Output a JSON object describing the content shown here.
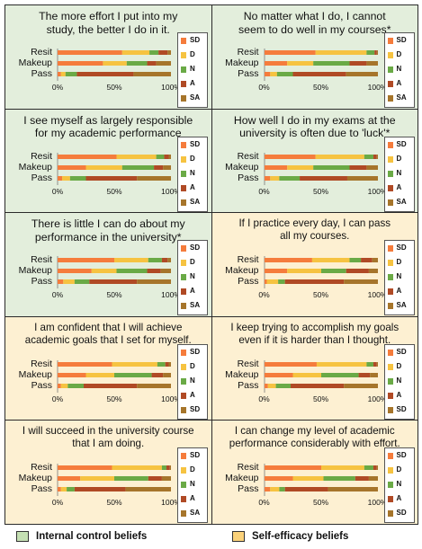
{
  "colors": {
    "SD": "#f57c3c",
    "D": "#f6c341",
    "N": "#6aaa46",
    "A": "#b04a25",
    "SA": "#a6752b",
    "internal_bg": "#e3eedc",
    "selfefficacy_bg": "#fdf0d2",
    "internal_swatch": "#c5e0b3",
    "selfefficacy_swatch": "#fbd27a"
  },
  "footer": {
    "internal_label": "Internal control beliefs",
    "selfefficacy_label": "Self-efficacy beliefs"
  },
  "chart_data": [
    {
      "type": "bar",
      "title": "The more effort I put into my\nstudy, the better I do in it.",
      "group": "internal",
      "categories": [
        "Resit",
        "Makeup",
        "Pass"
      ],
      "x_ticks": [
        "0%",
        "50%",
        "100%"
      ],
      "legend": [
        "SD",
        "D",
        "N",
        "A",
        "SA"
      ],
      "series": [
        {
          "name": "SD",
          "values": [
            0.57,
            0.4,
            0.03
          ]
        },
        {
          "name": "D",
          "values": [
            0.24,
            0.21,
            0.04
          ]
        },
        {
          "name": "N",
          "values": [
            0.08,
            0.18,
            0.1
          ]
        },
        {
          "name": "A",
          "values": [
            0.08,
            0.08,
            0.5
          ]
        },
        {
          "name": "SA",
          "values": [
            0.03,
            0.13,
            0.33
          ]
        }
      ]
    },
    {
      "type": "bar",
      "title": "No matter what I do, I cannot\nseem to do well in my courses*",
      "group": "internal",
      "categories": [
        "Resit",
        "Makeup",
        "Pass"
      ],
      "x_ticks": [
        "0%",
        "50%",
        "100%"
      ],
      "legend": [
        "SD",
        "D",
        "N",
        "A",
        "SA"
      ],
      "series": [
        {
          "name": "SD",
          "values": [
            0.45,
            0.2,
            0.05
          ]
        },
        {
          "name": "D",
          "values": [
            0.45,
            0.23,
            0.06
          ]
        },
        {
          "name": "N",
          "values": [
            0.07,
            0.32,
            0.14
          ]
        },
        {
          "name": "A",
          "values": [
            0.02,
            0.15,
            0.47
          ]
        },
        {
          "name": "SA",
          "values": [
            0.01,
            0.1,
            0.28
          ]
        }
      ]
    },
    {
      "type": "bar",
      "title": "I see myself as largely responsible\nfor my academic performance",
      "group": "internal",
      "categories": [
        "Resit",
        "Makeup",
        "Pass"
      ],
      "x_ticks": [
        "0%",
        "50%",
        "100%"
      ],
      "legend": [
        "SD",
        "D",
        "N",
        "A",
        "SA"
      ],
      "series": [
        {
          "name": "SD",
          "values": [
            0.52,
            0.25,
            0.04
          ]
        },
        {
          "name": "D",
          "values": [
            0.35,
            0.32,
            0.07
          ]
        },
        {
          "name": "N",
          "values": [
            0.07,
            0.28,
            0.14
          ]
        },
        {
          "name": "A",
          "values": [
            0.04,
            0.08,
            0.45
          ]
        },
        {
          "name": "SA",
          "values": [
            0.02,
            0.07,
            0.3
          ]
        }
      ]
    },
    {
      "type": "bar",
      "title": "How well I do in my exams at the\nuniversity is often due to 'luck'*",
      "group": "internal",
      "categories": [
        "Resit",
        "Makeup",
        "Pass"
      ],
      "x_ticks": [
        "0%",
        "50%",
        "100%"
      ],
      "legend": [
        "SD",
        "D",
        "N",
        "A",
        "SA"
      ],
      "series": [
        {
          "name": "SD",
          "values": [
            0.45,
            0.2,
            0.05
          ]
        },
        {
          "name": "D",
          "values": [
            0.43,
            0.23,
            0.08
          ]
        },
        {
          "name": "N",
          "values": [
            0.08,
            0.32,
            0.18
          ]
        },
        {
          "name": "A",
          "values": [
            0.03,
            0.15,
            0.42
          ]
        },
        {
          "name": "SA",
          "values": [
            0.01,
            0.1,
            0.27
          ]
        }
      ]
    },
    {
      "type": "bar",
      "title": "There is little I can do about my\nperformance in the university*",
      "group": "internal",
      "categories": [
        "Resit",
        "Makeup",
        "Pass"
      ],
      "x_ticks": [
        "0%",
        "50%",
        "100%"
      ],
      "legend": [
        "SD",
        "D",
        "N",
        "A",
        "SA"
      ],
      "series": [
        {
          "name": "SD",
          "values": [
            0.5,
            0.3,
            0.05
          ]
        },
        {
          "name": "D",
          "values": [
            0.3,
            0.22,
            0.1
          ]
        },
        {
          "name": "N",
          "values": [
            0.12,
            0.27,
            0.13
          ]
        },
        {
          "name": "A",
          "values": [
            0.05,
            0.12,
            0.42
          ]
        },
        {
          "name": "SA",
          "values": [
            0.03,
            0.09,
            0.3
          ]
        }
      ]
    },
    {
      "type": "bar",
      "title": "If I practice every day, I can pass\nall my courses.",
      "group": "selfefficacy",
      "categories": [
        "Resit",
        "Makeup",
        "Pass"
      ],
      "x_ticks": [
        "0%",
        "50%",
        "100%"
      ],
      "legend": [
        "SD",
        "D",
        "N",
        "A",
        "SA"
      ],
      "series": [
        {
          "name": "SD",
          "values": [
            0.42,
            0.2,
            0.02
          ]
        },
        {
          "name": "D",
          "values": [
            0.33,
            0.3,
            0.1
          ]
        },
        {
          "name": "N",
          "values": [
            0.1,
            0.22,
            0.06
          ]
        },
        {
          "name": "A",
          "values": [
            0.1,
            0.2,
            0.52
          ]
        },
        {
          "name": "SA",
          "values": [
            0.05,
            0.08,
            0.3
          ]
        }
      ]
    },
    {
      "type": "bar",
      "title": "I am confident that I will achieve\nacademic goals that I set for myself.",
      "group": "selfefficacy",
      "categories": [
        "Resit",
        "Makeup",
        "Pass"
      ],
      "x_ticks": [
        "0%",
        "50%",
        "100%"
      ],
      "legend": [
        "SD",
        "D",
        "N",
        "A",
        "SD"
      ],
      "series": [
        {
          "name": "SD",
          "values": [
            0.48,
            0.25,
            0.03
          ]
        },
        {
          "name": "D",
          "values": [
            0.4,
            0.25,
            0.06
          ]
        },
        {
          "name": "N",
          "values": [
            0.07,
            0.33,
            0.14
          ]
        },
        {
          "name": "A",
          "values": [
            0.03,
            0.1,
            0.47
          ]
        },
        {
          "name": "SD",
          "values": [
            0.02,
            0.07,
            0.3
          ]
        }
      ]
    },
    {
      "type": "bar",
      "title": "I keep trying to accomplish my goals\neven if it is harder than I thought.",
      "group": "selfefficacy",
      "categories": [
        "Resit",
        "Makeup",
        "Pass"
      ],
      "x_ticks": [
        "0%",
        "50%",
        "100%"
      ],
      "legend": [
        "SD",
        "D",
        "N",
        "A",
        "SD"
      ],
      "series": [
        {
          "name": "SD",
          "values": [
            0.46,
            0.25,
            0.03
          ]
        },
        {
          "name": "D",
          "values": [
            0.44,
            0.25,
            0.07
          ]
        },
        {
          "name": "N",
          "values": [
            0.06,
            0.33,
            0.13
          ]
        },
        {
          "name": "A",
          "values": [
            0.03,
            0.1,
            0.47
          ]
        },
        {
          "name": "SD",
          "values": [
            0.01,
            0.07,
            0.3
          ]
        }
      ]
    },
    {
      "type": "bar",
      "title": "I will succeed in the university course\nthat I am doing.",
      "group": "selfefficacy",
      "categories": [
        "Resit",
        "Makeup",
        "Pass"
      ],
      "x_ticks": [
        "0%",
        "50%",
        "100%"
      ],
      "legend": [
        "SD",
        "D",
        "N",
        "A",
        "SA"
      ],
      "series": [
        {
          "name": "SD",
          "values": [
            0.48,
            0.2,
            0.03
          ]
        },
        {
          "name": "D",
          "values": [
            0.44,
            0.3,
            0.05
          ]
        },
        {
          "name": "N",
          "values": [
            0.04,
            0.3,
            0.07
          ]
        },
        {
          "name": "A",
          "values": [
            0.03,
            0.12,
            0.45
          ]
        },
        {
          "name": "SA",
          "values": [
            0.01,
            0.08,
            0.4
          ]
        }
      ]
    },
    {
      "type": "bar",
      "title": "I can change my level of academic\nperformance considerably with effort.",
      "group": "selfefficacy",
      "categories": [
        "Resit",
        "Makeup",
        "Pass"
      ],
      "x_ticks": [
        "0%",
        "50%",
        "100%"
      ],
      "legend": [
        "SD",
        "D",
        "N",
        "A",
        "SD"
      ],
      "series": [
        {
          "name": "SD",
          "values": [
            0.5,
            0.25,
            0.05
          ]
        },
        {
          "name": "D",
          "values": [
            0.38,
            0.27,
            0.08
          ]
        },
        {
          "name": "N",
          "values": [
            0.08,
            0.28,
            0.05
          ]
        },
        {
          "name": "A",
          "values": [
            0.03,
            0.12,
            0.38
          ]
        },
        {
          "name": "SD",
          "values": [
            0.01,
            0.08,
            0.44
          ]
        }
      ]
    }
  ]
}
